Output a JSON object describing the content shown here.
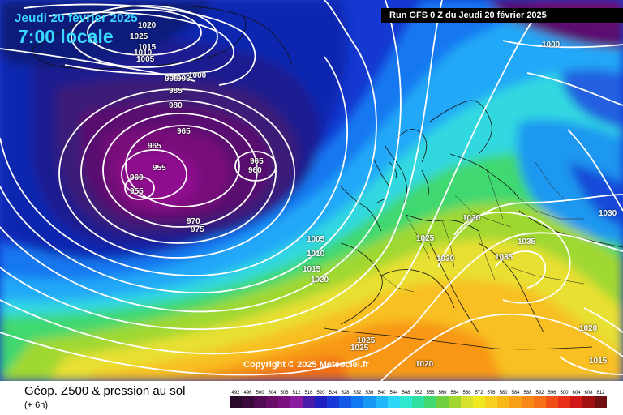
{
  "header": {
    "date": "Jeudi 20 février 2025",
    "time": "7:00 locale",
    "run": "Run GFS 0 Z du Jeudi 20 février 2025"
  },
  "copyright": "Copyright © 2025 Meteociel.fr",
  "footer": {
    "title": "Géop. Z500 & pression au sol",
    "subtitle": "(+ 6h)"
  },
  "colorbar": {
    "ticks": [
      "492",
      "496",
      "500",
      "504",
      "508",
      "512",
      "516",
      "520",
      "524",
      "528",
      "532",
      "536",
      "540",
      "544",
      "548",
      "552",
      "556",
      "560",
      "564",
      "568",
      "572",
      "576",
      "580",
      "584",
      "588",
      "592",
      "596",
      "600",
      "604",
      "608",
      "612"
    ],
    "colors": [
      "#2a0a2a",
      "#3d0a3d",
      "#520a52",
      "#680d68",
      "#7a1080",
      "#8a1ca0",
      "#4a1aa8",
      "#2020c0",
      "#1838d8",
      "#1458e8",
      "#1078f0",
      "#1898f4",
      "#20b8f8",
      "#30d8f8",
      "#30e8d0",
      "#30e0a0",
      "#40d870",
      "#70d040",
      "#a0d830",
      "#d8e030",
      "#f0e820",
      "#f8d020",
      "#f8b818",
      "#f8a018",
      "#f88818",
      "#f87018",
      "#f05018",
      "#e83018",
      "#d01818",
      "#a01010",
      "#701010"
    ]
  },
  "pressure_labels": [
    "1020",
    "1025",
    "1015",
    "1010",
    "1005",
    "995",
    "999",
    "1000",
    "985",
    "980",
    "965",
    "965",
    "955",
    "960",
    "955",
    "965",
    "960",
    "970",
    "975",
    "1005",
    "1010",
    "1015",
    "1020",
    "1025",
    "1030",
    "1030",
    "1035",
    "1035",
    "1030",
    "1000",
    "1020",
    "1015",
    "1025",
    "1025",
    "1020"
  ]
}
